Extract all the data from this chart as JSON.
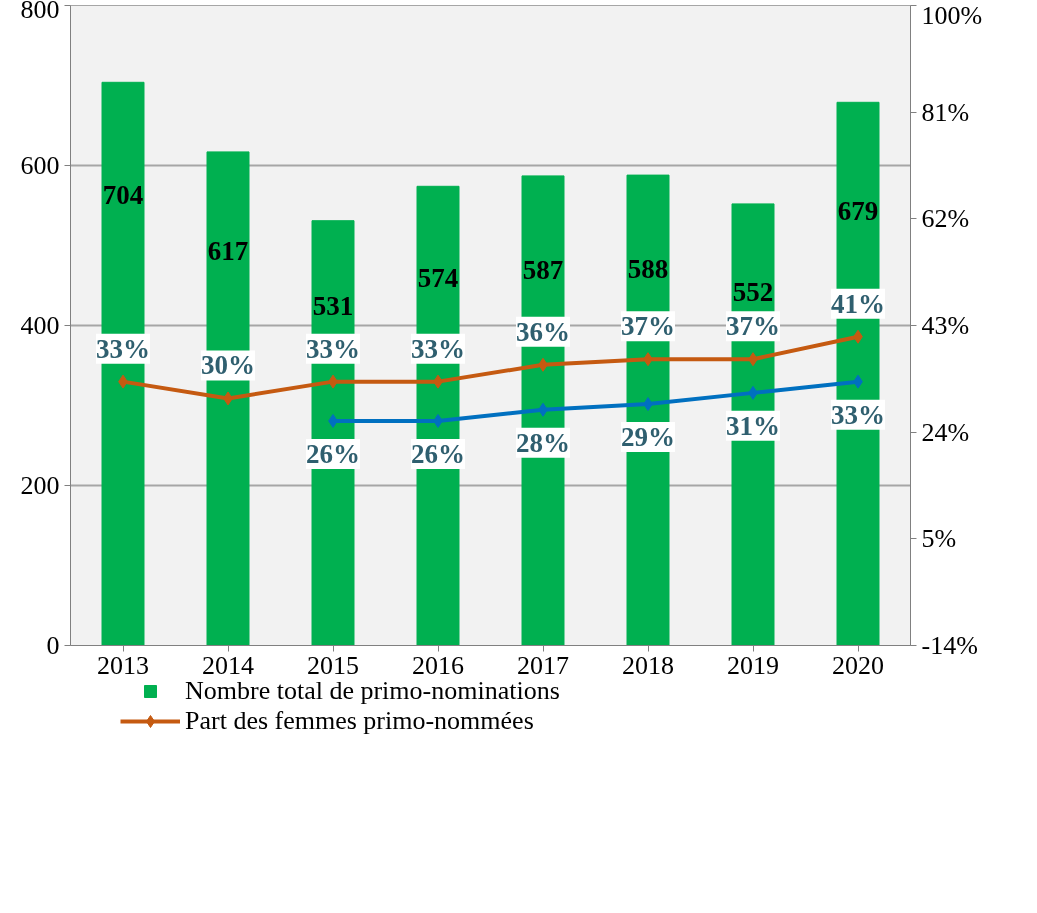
{
  "chart_data": {
    "type": "bar",
    "categories": [
      "2013",
      "2014",
      "2015",
      "2016",
      "2017",
      "2018",
      "2019",
      "2020"
    ],
    "series": [
      {
        "name": "Nombre total de primo-nominations",
        "type": "bar",
        "color": "#00b050",
        "values": [
          704,
          617,
          531,
          574,
          587,
          588,
          552,
          679
        ]
      },
      {
        "name": "Part des femmes primo-nommées",
        "type": "line",
        "axis": "y2",
        "color": "#c55a11",
        "marker": "diamond",
        "values": [
          33,
          30,
          33,
          33,
          36,
          37,
          37,
          41
        ],
        "value_labels": [
          "33%",
          "30%",
          "33%",
          "33%",
          "36%",
          "37%",
          "37%",
          "41%"
        ]
      },
      {
        "type": "line",
        "axis": "y2",
        "color": "#0070c0",
        "marker": "diamond",
        "values": [
          null,
          null,
          26,
          26,
          28,
          29,
          31,
          33
        ],
        "value_labels": [
          null,
          null,
          "26%",
          "26%",
          "28%",
          "29%",
          "31%",
          "33%"
        ]
      }
    ],
    "ylim": [
      0,
      800
    ],
    "yticks": [
      0,
      200,
      400,
      600,
      800
    ],
    "y2lim": [
      -14,
      100
    ],
    "y2ticks": [
      {
        "value": -14,
        "label": "-14%"
      },
      {
        "value": 5,
        "label": "5%"
      },
      {
        "value": 24,
        "label": "24%"
      },
      {
        "value": 43,
        "label": "43%"
      },
      {
        "value": 62,
        "label": "62%"
      },
      {
        "value": 81,
        "label": "81%"
      },
      {
        "value": 100,
        "label": "100%"
      }
    ],
    "data_labels": true,
    "grid": "y",
    "legend": "bottom",
    "line_style": "solid"
  }
}
